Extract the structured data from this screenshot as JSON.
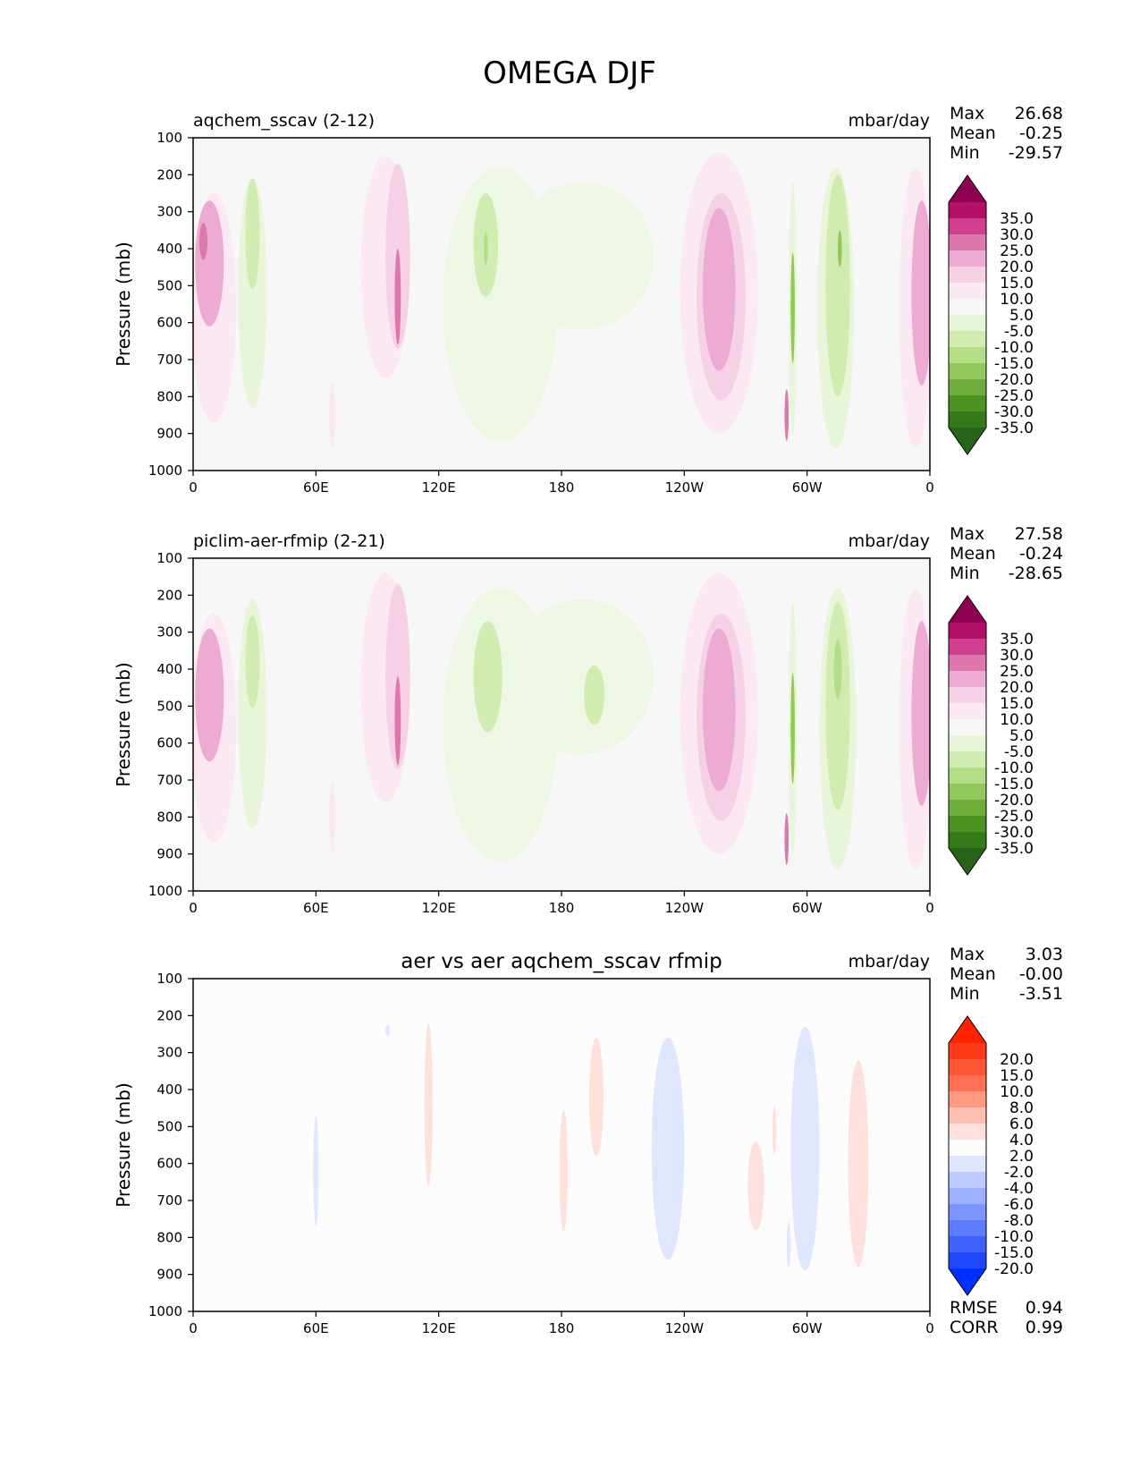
{
  "figure": {
    "title": "OMEGA DJF"
  },
  "chart_data": [
    {
      "type": "heatmap",
      "title": "aqchem_sscav (2-12)",
      "title_align": "left",
      "units": "mbar/day",
      "ylabel": "Pressure (mb)",
      "xlabel": "",
      "yticks": [
        "100",
        "200",
        "300",
        "400",
        "500",
        "600",
        "700",
        "800",
        "900",
        "1000"
      ],
      "xticks": [
        "0",
        "60E",
        "120E",
        "180",
        "120W",
        "60W",
        "0"
      ],
      "ylim": [
        1000,
        100
      ],
      "xlim": [
        0,
        360
      ],
      "stats": [
        {
          "label": "Max",
          "value": "26.68"
        },
        {
          "label": "Mean",
          "value": "-0.25"
        },
        {
          "label": "Min",
          "value": "-29.57"
        }
      ],
      "colorbar": {
        "labels": [
          "35.0",
          "30.0",
          "25.0",
          "20.0",
          "15.0",
          "10.0",
          "5.0",
          "-5.0",
          "-10.0",
          "-15.0",
          "-20.0",
          "-25.0",
          "-30.0",
          "-35.0"
        ],
        "colors": [
          "#8e0152",
          "#b20f67",
          "#cf3e8f",
          "#de77ae",
          "#edabd3",
          "#f6d1e6",
          "#fbe8f2",
          "#f7f7f7",
          "#e8f5d8",
          "#d0ecb0",
          "#b4de86",
          "#92c85b",
          "#6fad3b",
          "#4d9221",
          "#347a18",
          "#276419"
        ]
      },
      "blobs": [
        {
          "lon": 10,
          "p": 560,
          "w": 22,
          "h": 620,
          "c": "#fbe8f2"
        },
        {
          "lon": 8,
          "p": 440,
          "w": 14,
          "h": 340,
          "c": "#edabd3"
        },
        {
          "lon": 5,
          "p": 380,
          "w": 4,
          "h": 100,
          "c": "#de77ae"
        },
        {
          "lon": 29,
          "p": 520,
          "w": 14,
          "h": 620,
          "c": "#e8f5d8"
        },
        {
          "lon": 29,
          "p": 360,
          "w": 7,
          "h": 300,
          "c": "#d0ecb0"
        },
        {
          "lon": 94,
          "p": 450,
          "w": 24,
          "h": 600,
          "c": "#fbe8f2"
        },
        {
          "lon": 100,
          "p": 420,
          "w": 12,
          "h": 500,
          "c": "#f6d1e6"
        },
        {
          "lon": 100,
          "p": 530,
          "w": 3,
          "h": 260,
          "c": "#de77ae"
        },
        {
          "lon": 68,
          "p": 850,
          "w": 3,
          "h": 180,
          "c": "#fbe8f2"
        },
        {
          "lon": 150,
          "p": 550,
          "w": 56,
          "h": 740,
          "c": "#eef7e3"
        },
        {
          "lon": 190,
          "p": 420,
          "w": 70,
          "h": 400,
          "c": "#eef7e3"
        },
        {
          "lon": 143,
          "p": 390,
          "w": 12,
          "h": 280,
          "c": "#d0ecb0"
        },
        {
          "lon": 143,
          "p": 400,
          "w": 2,
          "h": 90,
          "c": "#b4de86"
        },
        {
          "lon": 257,
          "p": 520,
          "w": 38,
          "h": 760,
          "c": "#fbe8f2"
        },
        {
          "lon": 258,
          "p": 530,
          "w": 24,
          "h": 560,
          "c": "#f6d1e6"
        },
        {
          "lon": 257,
          "p": 510,
          "w": 16,
          "h": 440,
          "c": "#edabd3"
        },
        {
          "lon": 293,
          "p": 560,
          "w": 4,
          "h": 680,
          "c": "#e8f5d8"
        },
        {
          "lon": 293,
          "p": 560,
          "w": 2,
          "h": 300,
          "c": "#92c85b"
        },
        {
          "lon": 290,
          "p": 850,
          "w": 2,
          "h": 140,
          "c": "#de77ae"
        },
        {
          "lon": 314,
          "p": 560,
          "w": 18,
          "h": 760,
          "c": "#e8f5d8"
        },
        {
          "lon": 315,
          "p": 500,
          "w": 12,
          "h": 600,
          "c": "#d0ecb0"
        },
        {
          "lon": 316,
          "p": 400,
          "w": 2,
          "h": 100,
          "c": "#92c85b"
        },
        {
          "lon": 353,
          "p": 560,
          "w": 16,
          "h": 760,
          "c": "#fbe8f2"
        },
        {
          "lon": 356,
          "p": 520,
          "w": 10,
          "h": 500,
          "c": "#edabd3"
        }
      ]
    },
    {
      "type": "heatmap",
      "title": "piclim-aer-rfmip (2-21)",
      "title_align": "left",
      "units": "mbar/day",
      "ylabel": "Pressure (mb)",
      "xlabel": "",
      "yticks": [
        "100",
        "200",
        "300",
        "400",
        "500",
        "600",
        "700",
        "800",
        "900",
        "1000"
      ],
      "xticks": [
        "0",
        "60E",
        "120E",
        "180",
        "120W",
        "60W",
        "0"
      ],
      "ylim": [
        1000,
        100
      ],
      "xlim": [
        0,
        360
      ],
      "stats": [
        {
          "label": "Max",
          "value": "27.58"
        },
        {
          "label": "Mean",
          "value": "-0.24"
        },
        {
          "label": "Min",
          "value": "-28.65"
        }
      ],
      "colorbar": {
        "labels": [
          "35.0",
          "30.0",
          "25.0",
          "20.0",
          "15.0",
          "10.0",
          "5.0",
          "-5.0",
          "-10.0",
          "-15.0",
          "-20.0",
          "-25.0",
          "-30.0",
          "-35.0"
        ],
        "colors": [
          "#8e0152",
          "#b20f67",
          "#cf3e8f",
          "#de77ae",
          "#edabd3",
          "#f6d1e6",
          "#fbe8f2",
          "#f7f7f7",
          "#e8f5d8",
          "#d0ecb0",
          "#b4de86",
          "#92c85b",
          "#6fad3b",
          "#4d9221",
          "#347a18",
          "#276419"
        ]
      },
      "blobs": [
        {
          "lon": 10,
          "p": 560,
          "w": 22,
          "h": 620,
          "c": "#fbe8f2"
        },
        {
          "lon": 8,
          "p": 470,
          "w": 14,
          "h": 360,
          "c": "#edabd3"
        },
        {
          "lon": 29,
          "p": 520,
          "w": 14,
          "h": 620,
          "c": "#e8f5d8"
        },
        {
          "lon": 29,
          "p": 380,
          "w": 7,
          "h": 250,
          "c": "#d0ecb0"
        },
        {
          "lon": 94,
          "p": 450,
          "w": 24,
          "h": 620,
          "c": "#fbe8f2"
        },
        {
          "lon": 100,
          "p": 420,
          "w": 12,
          "h": 500,
          "c": "#f6d1e6"
        },
        {
          "lon": 100,
          "p": 540,
          "w": 3,
          "h": 240,
          "c": "#de77ae"
        },
        {
          "lon": 68,
          "p": 800,
          "w": 3,
          "h": 200,
          "c": "#fbe8f2"
        },
        {
          "lon": 150,
          "p": 550,
          "w": 56,
          "h": 740,
          "c": "#eef7e3"
        },
        {
          "lon": 190,
          "p": 420,
          "w": 70,
          "h": 420,
          "c": "#eef7e3"
        },
        {
          "lon": 144,
          "p": 420,
          "w": 14,
          "h": 300,
          "c": "#d0ecb0"
        },
        {
          "lon": 196,
          "p": 470,
          "w": 10,
          "h": 160,
          "c": "#d0ecb0"
        },
        {
          "lon": 257,
          "p": 520,
          "w": 38,
          "h": 760,
          "c": "#fbe8f2"
        },
        {
          "lon": 258,
          "p": 530,
          "w": 24,
          "h": 560,
          "c": "#f6d1e6"
        },
        {
          "lon": 257,
          "p": 510,
          "w": 16,
          "h": 440,
          "c": "#edabd3"
        },
        {
          "lon": 293,
          "p": 560,
          "w": 4,
          "h": 680,
          "c": "#e8f5d8"
        },
        {
          "lon": 293,
          "p": 560,
          "w": 2,
          "h": 300,
          "c": "#92c85b"
        },
        {
          "lon": 290,
          "p": 860,
          "w": 2,
          "h": 140,
          "c": "#de77ae"
        },
        {
          "lon": 315,
          "p": 560,
          "w": 18,
          "h": 760,
          "c": "#e8f5d8"
        },
        {
          "lon": 315,
          "p": 500,
          "w": 12,
          "h": 560,
          "c": "#d0ecb0"
        },
        {
          "lon": 315,
          "p": 400,
          "w": 4,
          "h": 160,
          "c": "#b4de86"
        },
        {
          "lon": 353,
          "p": 560,
          "w": 16,
          "h": 760,
          "c": "#fbe8f2"
        },
        {
          "lon": 356,
          "p": 520,
          "w": 10,
          "h": 500,
          "c": "#edabd3"
        }
      ]
    },
    {
      "type": "heatmap",
      "title": "aer vs aer aqchem_sscav rfmip",
      "title_align": "center",
      "units": "mbar/day",
      "ylabel": "Pressure (mb)",
      "xlabel": "",
      "yticks": [
        "100",
        "200",
        "300",
        "400",
        "500",
        "600",
        "700",
        "800",
        "900",
        "1000"
      ],
      "xticks": [
        "0",
        "60E",
        "120E",
        "180",
        "120W",
        "60W",
        "0"
      ],
      "ylim": [
        1000,
        100
      ],
      "xlim": [
        0,
        360
      ],
      "stats": [
        {
          "label": "Max",
          "value": "3.03"
        },
        {
          "label": "Mean",
          "value": "-0.00"
        },
        {
          "label": "Min",
          "value": "-3.51"
        }
      ],
      "extra_stats": [
        {
          "label": "RMSE",
          "value": "0.94"
        },
        {
          "label": "CORR",
          "value": "0.99"
        }
      ],
      "colorbar": {
        "labels": [
          "20.0",
          "15.0",
          "10.0",
          "8.0",
          "6.0",
          "4.0",
          "2.0",
          "-2.0",
          "-4.0",
          "-6.0",
          "-8.0",
          "-10.0",
          "-15.0",
          "-20.0"
        ],
        "colors": [
          "#ff2200",
          "#ff3a1a",
          "#ff5533",
          "#ff7155",
          "#ff9a80",
          "#ffbfb0",
          "#ffe1db",
          "#fcfcfc",
          "#e0e6fd",
          "#bccaff",
          "#9cb0ff",
          "#7d96ff",
          "#5e7cff",
          "#3f62ff",
          "#2048ff",
          "#0030ff"
        ]
      },
      "blobs": [
        {
          "lon": 60,
          "p": 620,
          "w": 2.5,
          "h": 300,
          "c": "#e0e6fd"
        },
        {
          "lon": 95,
          "p": 240,
          "w": 2,
          "h": 30,
          "c": "#e0e6fd"
        },
        {
          "lon": 115,
          "p": 440,
          "w": 4,
          "h": 440,
          "c": "#ffe1db"
        },
        {
          "lon": 181,
          "p": 620,
          "w": 4,
          "h": 330,
          "c": "#ffe1db"
        },
        {
          "lon": 197,
          "p": 420,
          "w": 7,
          "h": 320,
          "c": "#ffe1db"
        },
        {
          "lon": 232,
          "p": 560,
          "w": 16,
          "h": 600,
          "c": "#e0e6fd"
        },
        {
          "lon": 275,
          "p": 660,
          "w": 8,
          "h": 240,
          "c": "#ffe1db"
        },
        {
          "lon": 284,
          "p": 510,
          "w": 2,
          "h": 130,
          "c": "#ffe1db"
        },
        {
          "lon": 299,
          "p": 560,
          "w": 14,
          "h": 660,
          "c": "#e0e6fd"
        },
        {
          "lon": 291,
          "p": 820,
          "w": 2,
          "h": 120,
          "c": "#e0e6fd"
        },
        {
          "lon": 325,
          "p": 600,
          "w": 10,
          "h": 560,
          "c": "#ffe1db"
        }
      ]
    }
  ]
}
